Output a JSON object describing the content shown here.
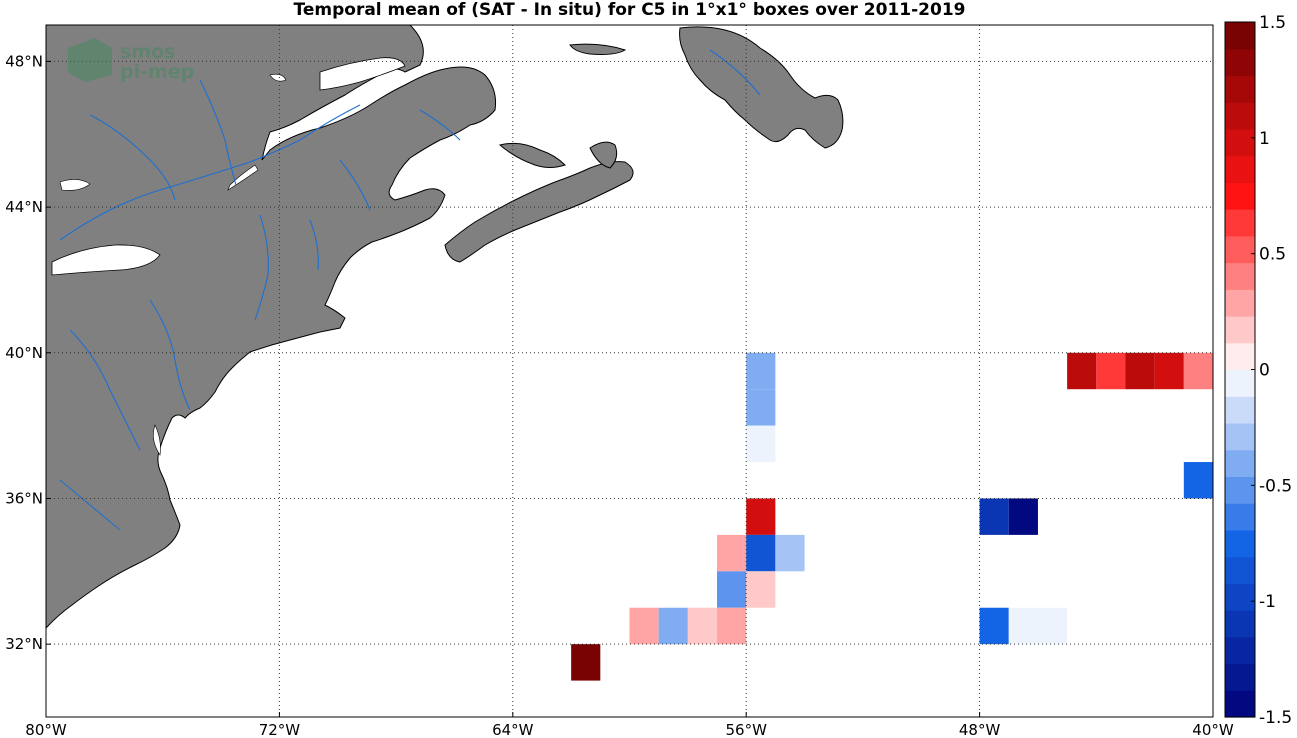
{
  "title": "Temporal mean of (SAT - In situ) for C5 in 1°x1° boxes over 2011-2019",
  "logo": {
    "line1": "smos",
    "line2": "pi-mep"
  },
  "colors": {
    "land": "#808080",
    "coast": "#000000",
    "rivers": "#1f6fd0",
    "grid": "#333333",
    "background": "#ffffff"
  },
  "map": {
    "lon_range": [
      -80,
      -40
    ],
    "lat_range": [
      30,
      49
    ],
    "lon_ticks": [
      {
        "value": -80,
        "label": "80°W"
      },
      {
        "value": -72,
        "label": "72°W"
      },
      {
        "value": -64,
        "label": "64°W"
      },
      {
        "value": -56,
        "label": "56°W"
      },
      {
        "value": -48,
        "label": "48°W"
      },
      {
        "value": -40,
        "label": "40°W"
      }
    ],
    "lat_ticks": [
      {
        "value": 32,
        "label": "32°N"
      },
      {
        "value": 36,
        "label": "36°N"
      },
      {
        "value": 40,
        "label": "40°N"
      },
      {
        "value": 44,
        "label": "44°N"
      },
      {
        "value": 48,
        "label": "48°N"
      }
    ]
  },
  "colorbar": {
    "range": [
      -1.5,
      1.5
    ],
    "levels": 26,
    "ticks": [
      {
        "value": 1.5,
        "label": "1.5"
      },
      {
        "value": 1,
        "label": "1"
      },
      {
        "value": 0.5,
        "label": "0.5"
      },
      {
        "value": 0,
        "label": "0"
      },
      {
        "value": -0.5,
        "label": "-0.5"
      },
      {
        "value": -1,
        "label": "-1"
      },
      {
        "value": -1.5,
        "label": "-1.5"
      }
    ]
  },
  "chart_data": {
    "type": "heatmap",
    "title": "Temporal mean of (SAT - In situ) for C5 in 1°x1° boxes over 2011-2019",
    "x_unit": "longitude (°E, negative = W)",
    "y_unit": "latitude (°N)",
    "cells": [
      {
        "lon": -56,
        "lat": 40,
        "value": -0.45
      },
      {
        "lon": -56,
        "lat": 39,
        "value": -0.45
      },
      {
        "lon": -56,
        "lat": 38,
        "value": -0.1
      },
      {
        "lon": -56,
        "lat": 36,
        "value": 0.95
      },
      {
        "lon": -57,
        "lat": 35,
        "value": 0.3
      },
      {
        "lon": -56,
        "lat": 35,
        "value": -0.85
      },
      {
        "lon": -55,
        "lat": 35,
        "value": -0.25
      },
      {
        "lon": -57,
        "lat": 34,
        "value": -0.55
      },
      {
        "lon": -56,
        "lat": 34,
        "value": 0.15
      },
      {
        "lon": -60,
        "lat": 33,
        "value": 0.3
      },
      {
        "lon": -59,
        "lat": 33,
        "value": -0.45
      },
      {
        "lon": -58,
        "lat": 33,
        "value": 0.15
      },
      {
        "lon": -57,
        "lat": 33,
        "value": 0.3
      },
      {
        "lon": -62,
        "lat": 32,
        "value": 1.5
      },
      {
        "lon": -48,
        "lat": 36,
        "value": -1.1
      },
      {
        "lon": -47,
        "lat": 36,
        "value": -1.45
      },
      {
        "lon": -48,
        "lat": 33,
        "value": -0.7
      },
      {
        "lon": -47,
        "lat": 33,
        "value": -0.1
      },
      {
        "lon": -46,
        "lat": 33,
        "value": -0.1
      },
      {
        "lon": -41,
        "lat": 37,
        "value": -0.7
      },
      {
        "lon": -45,
        "lat": 40,
        "value": 1.05
      },
      {
        "lon": -44,
        "lat": 40,
        "value": 0.65
      },
      {
        "lon": -43,
        "lat": 40,
        "value": 1.05
      },
      {
        "lon": -42,
        "lat": 40,
        "value": 0.95
      },
      {
        "lon": -41,
        "lat": 40,
        "value": 0.45
      }
    ]
  }
}
